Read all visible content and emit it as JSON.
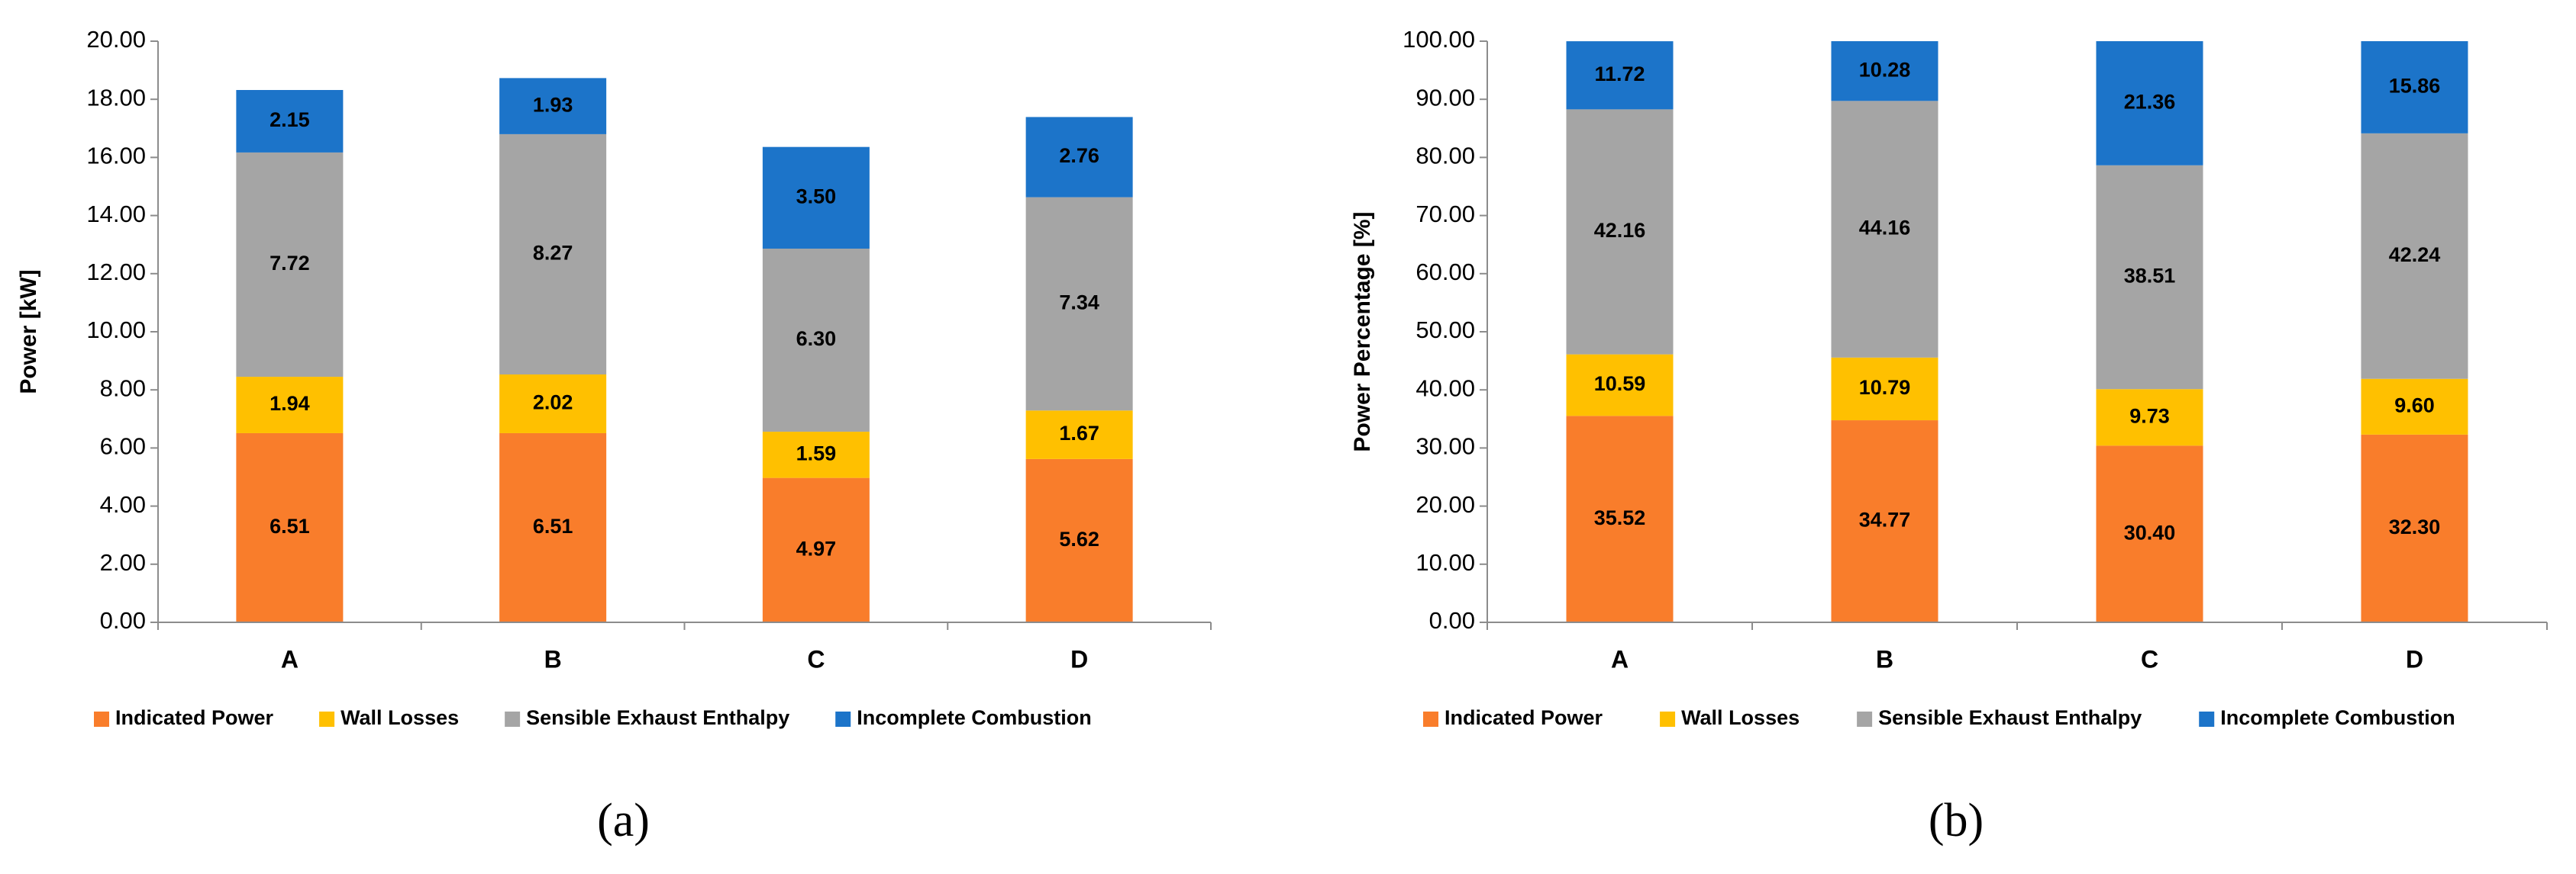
{
  "chart_data": [
    {
      "type": "stacked_bar",
      "caption": "(a)",
      "y_label": "Power [kW]",
      "categories": [
        "A",
        "B",
        "C",
        "D"
      ],
      "series": [
        {
          "name": "Indicated Power",
          "color": "#f97d2b",
          "values": [
            6.51,
            6.51,
            4.97,
            5.62
          ],
          "value_labels": [
            "6.51",
            "6.51",
            "4.97",
            "5.62"
          ]
        },
        {
          "name": "Wall Losses",
          "color": "#ffc000",
          "values": [
            1.94,
            2.02,
            1.59,
            1.67
          ],
          "value_labels": [
            "1.94",
            "2.02",
            "1.59",
            "1.67"
          ]
        },
        {
          "name": "Sensible Exhaust Enthalpy",
          "color": "#a5a5a5",
          "values": [
            7.72,
            8.27,
            6.3,
            7.34
          ],
          "value_labels": [
            "7.72",
            "8.27",
            "6.30",
            "7.34"
          ]
        },
        {
          "name": "Incomplete Combustion",
          "color": "#1c74c9",
          "values": [
            2.15,
            1.93,
            3.5,
            2.76
          ],
          "value_labels": [
            "2.15",
            "1.93",
            "3.50",
            "2.76"
          ]
        }
      ],
      "ylim": [
        0,
        20
      ],
      "yticks": [
        {
          "value": 0,
          "label": "0.00"
        },
        {
          "value": 2,
          "label": "2.00"
        },
        {
          "value": 4,
          "label": "4.00"
        },
        {
          "value": 6,
          "label": "6.00"
        },
        {
          "value": 8,
          "label": "8.00"
        },
        {
          "value": 10,
          "label": "10.00"
        },
        {
          "value": 12,
          "label": "12.00"
        },
        {
          "value": 14,
          "label": "14.00"
        },
        {
          "value": 16,
          "label": "16.00"
        },
        {
          "value": 18,
          "label": "18.00"
        },
        {
          "value": 20,
          "label": "20.00"
        }
      ],
      "grid": false,
      "legend": "bottom"
    },
    {
      "type": "stacked_bar",
      "caption": "(b)",
      "y_label": "Power Percentage [%]",
      "categories": [
        "A",
        "B",
        "C",
        "D"
      ],
      "series": [
        {
          "name": "Indicated Power",
          "color": "#f97d2b",
          "values": [
            35.52,
            34.77,
            30.4,
            32.3
          ],
          "value_labels": [
            "35.52",
            "34.77",
            "30.40",
            "32.30"
          ]
        },
        {
          "name": "Wall Losses",
          "color": "#ffc000",
          "values": [
            10.59,
            10.79,
            9.73,
            9.6
          ],
          "value_labels": [
            "10.59",
            "10.79",
            "9.73",
            "9.60"
          ]
        },
        {
          "name": "Sensible Exhaust Enthalpy",
          "color": "#a5a5a5",
          "values": [
            42.16,
            44.16,
            38.51,
            42.24
          ],
          "value_labels": [
            "42.16",
            "44.16",
            "38.51",
            "42.24"
          ]
        },
        {
          "name": "Incomplete Combustion",
          "color": "#1c74c9",
          "values": [
            11.72,
            10.28,
            21.36,
            15.86
          ],
          "value_labels": [
            "11.72",
            "10.28",
            "21.36",
            "15.86"
          ]
        }
      ],
      "ylim": [
        0,
        100
      ],
      "yticks": [
        {
          "value": 0,
          "label": "0.00"
        },
        {
          "value": 10,
          "label": "10.00"
        },
        {
          "value": 20,
          "label": "20.00"
        },
        {
          "value": 30,
          "label": "30.00"
        },
        {
          "value": 40,
          "label": "40.00"
        },
        {
          "value": 50,
          "label": "50.00"
        },
        {
          "value": 60,
          "label": "60.00"
        },
        {
          "value": 70,
          "label": "70.00"
        },
        {
          "value": 80,
          "label": "80.00"
        },
        {
          "value": 90,
          "label": "90.00"
        },
        {
          "value": 100,
          "label": "100.00"
        }
      ],
      "grid": false,
      "legend": "bottom"
    }
  ]
}
